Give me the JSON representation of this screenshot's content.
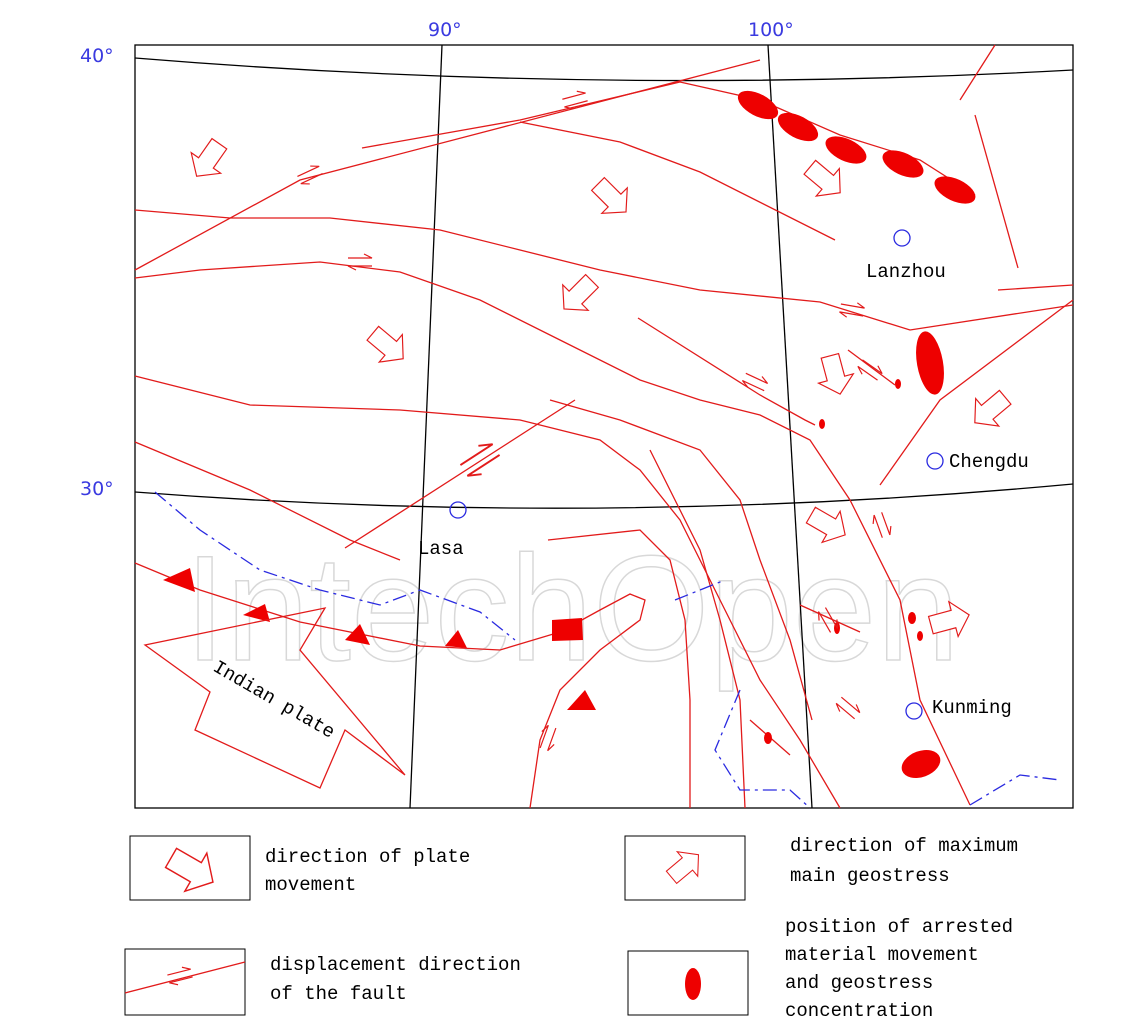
{
  "watermark": "IntechOpen",
  "graticule": {
    "lat_labels": [
      "40°",
      "30°"
    ],
    "lon_labels": [
      "90°",
      "100°"
    ]
  },
  "cities": [
    "Lanzhou",
    "Chengdu",
    "Lasa",
    "Kunming"
  ],
  "plate_label": "Indian plate",
  "legend": [
    {
      "lines": [
        "direction of plate",
        "movement"
      ]
    },
    {
      "lines": [
        "direction of maximum",
        "main geostress"
      ]
    },
    {
      "lines": [
        "displacement direction",
        "of the fault"
      ]
    },
    {
      "lines": [
        "position of arrested",
        "material movement",
        "and geostress",
        "concentration"
      ]
    }
  ]
}
